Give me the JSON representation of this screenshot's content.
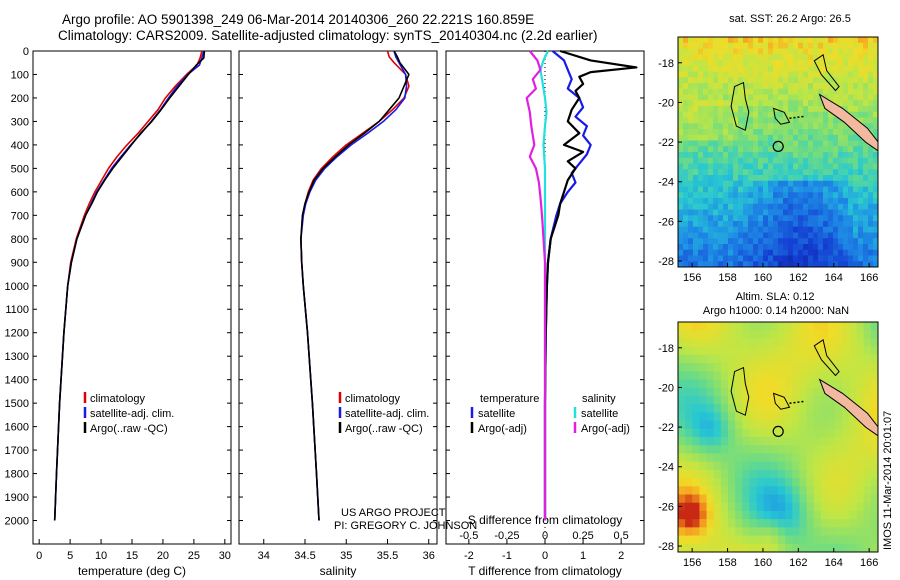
{
  "header": {
    "line1": "Argo profile: AO 5901398_249 06-Mar-2014 20140306_260 22.221S 160.859E",
    "line2": "Climatology: CARS2009. Satellite-adjusted climatology: synTS_20140304.nc (2.2d earlier)"
  },
  "colors": {
    "climatology": "#e00000",
    "satellite": "#1a1ae6",
    "argo": "#000000",
    "sal_satellite": "#20e0e0",
    "sal_argo": "#e020e0"
  },
  "stamp": "IMOS 11-Mar-2014 20:01:07",
  "credit": {
    "line1": "US ARGO PROJECT",
    "line2": "PI: GREGORY C. JOHNSON"
  },
  "chart_data": [
    {
      "type": "line",
      "panel": "temperature",
      "xlabel": "temperature (deg C)",
      "xlim": [
        -1,
        31
      ],
      "xticks": [
        "0",
        "5",
        "10",
        "15",
        "20",
        "25",
        "30"
      ],
      "ylim": [
        0,
        2100
      ],
      "yticks": [
        "0",
        "100",
        "200",
        "300",
        "400",
        "500",
        "600",
        "700",
        "800",
        "900",
        "1000",
        "1100",
        "1200",
        "1300",
        "1400",
        "1500",
        "1600",
        "1700",
        "1800",
        "1900",
        "2000"
      ],
      "legend": [
        "climatology",
        "satellite-adj. clim.",
        "Argo(..raw -QC)"
      ],
      "series": [
        {
          "name": "climatology",
          "depth": [
            0,
            30,
            60,
            100,
            150,
            200,
            250,
            300,
            350,
            400,
            450,
            500,
            550,
            600,
            650,
            700,
            800,
            900,
            1000,
            1200,
            1500,
            1800,
            2000
          ],
          "values": [
            26.3,
            26.0,
            25.5,
            23.8,
            22.0,
            20.4,
            19.2,
            17.6,
            16.0,
            14.2,
            12.6,
            11.2,
            10.1,
            9.0,
            8.1,
            7.3,
            6.0,
            5.1,
            4.6,
            4.0,
            3.3,
            2.8,
            2.5
          ]
        },
        {
          "name": "satellite-adj. clim.",
          "depth": [
            0,
            30,
            60,
            100,
            150,
            200,
            250,
            300,
            350,
            400,
            450,
            500,
            550,
            600,
            650,
            700,
            800,
            900,
            1000,
            1200,
            1500,
            1800,
            2000
          ],
          "values": [
            26.6,
            26.3,
            25.9,
            24.0,
            22.3,
            20.9,
            19.6,
            18.1,
            16.5,
            14.8,
            13.2,
            11.7,
            10.5,
            9.3,
            8.4,
            7.5,
            6.1,
            5.2,
            4.6,
            4.0,
            3.3,
            2.8,
            2.5
          ]
        },
        {
          "name": "Argo(..raw -QC)",
          "depth": [
            0,
            30,
            60,
            100,
            150,
            200,
            250,
            300,
            350,
            400,
            450,
            500,
            550,
            600,
            650,
            700,
            800,
            900,
            1000,
            1200,
            1500,
            1800,
            2000
          ],
          "values": [
            26.7,
            26.6,
            25.4,
            24.1,
            22.6,
            21.1,
            19.7,
            18.2,
            16.4,
            14.9,
            13.4,
            11.9,
            10.6,
            9.4,
            8.5,
            7.5,
            6.1,
            5.2,
            4.6,
            4.0,
            3.3,
            2.8,
            2.5
          ]
        }
      ]
    },
    {
      "type": "line",
      "panel": "salinity",
      "xlabel": "salinity",
      "xlim": [
        33.7,
        36.1
      ],
      "xticks": [
        "34",
        "34.5",
        "35",
        "35.5",
        "36"
      ],
      "ylim": [
        0,
        2100
      ],
      "legend": [
        "climatology",
        "satellite-adj. clim.",
        "Argo(..raw -QC)"
      ],
      "series": [
        {
          "name": "climatology",
          "depth": [
            0,
            25,
            50,
            100,
            150,
            200,
            250,
            300,
            350,
            400,
            450,
            500,
            550,
            600,
            650,
            700,
            800,
            900,
            1000,
            1200,
            1500,
            1800,
            2000
          ],
          "values": [
            35.5,
            35.52,
            35.58,
            35.72,
            35.76,
            35.7,
            35.56,
            35.4,
            35.2,
            35.0,
            34.84,
            34.7,
            34.6,
            34.54,
            34.5,
            34.47,
            34.45,
            34.46,
            34.48,
            34.53,
            34.59,
            34.64,
            34.67
          ]
        },
        {
          "name": "satellite-adj. clim.",
          "depth": [
            0,
            25,
            50,
            100,
            150,
            200,
            250,
            300,
            350,
            400,
            450,
            500,
            550,
            600,
            650,
            700,
            800,
            900,
            1000,
            1200,
            1500,
            1800,
            2000
          ],
          "values": [
            35.58,
            35.6,
            35.64,
            35.72,
            35.73,
            35.71,
            35.6,
            35.45,
            35.26,
            35.06,
            34.89,
            34.74,
            34.63,
            34.56,
            34.51,
            34.48,
            34.45,
            34.46,
            34.48,
            34.53,
            34.59,
            34.64,
            34.67
          ]
        },
        {
          "name": "Argo(..raw -QC)",
          "depth": [
            0,
            25,
            50,
            100,
            150,
            200,
            250,
            300,
            350,
            400,
            450,
            500,
            550,
            600,
            650,
            700,
            800,
            900,
            1000,
            1200,
            1500,
            1800,
            2000
          ],
          "values": [
            35.58,
            35.62,
            35.65,
            35.76,
            35.7,
            35.64,
            35.52,
            35.4,
            35.22,
            35.03,
            34.87,
            34.72,
            34.61,
            34.55,
            34.5,
            34.47,
            34.45,
            34.46,
            34.48,
            34.53,
            34.59,
            34.64,
            34.67
          ]
        }
      ]
    },
    {
      "type": "line",
      "panel": "difference",
      "xlabel_top": "S difference from climatology",
      "xlabel": "T difference from climatology",
      "xlim": [
        -2.6,
        2.6
      ],
      "xticks": [
        "-2",
        "-1",
        "0",
        "1",
        "2"
      ],
      "xticks_top": [
        "-0.5",
        "-0.25",
        "0",
        "0.25",
        "0.5"
      ],
      "ylim": [
        0,
        2100
      ],
      "legend_temperature": {
        "title": "temperature",
        "items": [
          "satellite",
          "Argo(-adj)"
        ]
      },
      "legend_salinity": {
        "title": "salinity",
        "items": [
          "satellite",
          "Argo(-adj)"
        ]
      },
      "series": [
        {
          "name": "temperature satellite",
          "depth": [
            0,
            40,
            80,
            120,
            160,
            200,
            240,
            280,
            320,
            360,
            400,
            440,
            480,
            520,
            560,
            600,
            650,
            700,
            800,
            900,
            1000,
            1200,
            1500,
            2000
          ],
          "values": [
            0.2,
            0.5,
            0.6,
            0.7,
            0.6,
            0.9,
            1.0,
            0.8,
            1.1,
            1.0,
            1.2,
            1.1,
            0.9,
            0.7,
            0.8,
            0.6,
            0.4,
            0.3,
            0.15,
            0.08,
            0.05,
            0.02,
            0.0,
            0.0
          ]
        },
        {
          "name": "temperature Argo(-adj)",
          "depth": [
            0,
            40,
            70,
            90,
            110,
            140,
            170,
            200,
            250,
            300,
            350,
            400,
            430,
            470,
            500,
            550,
            600,
            650,
            700,
            800,
            900,
            1000,
            1200,
            1500,
            2000
          ],
          "values": [
            0.4,
            1.2,
            2.4,
            1.2,
            0.9,
            1.0,
            0.8,
            0.9,
            0.7,
            0.6,
            0.9,
            0.5,
            1.0,
            0.6,
            0.8,
            0.6,
            0.5,
            0.4,
            0.35,
            0.15,
            0.08,
            0.05,
            0.02,
            0.0,
            0.0
          ]
        },
        {
          "name": "salinity satellite",
          "depth": [
            0,
            40,
            80,
            120,
            160,
            200,
            260,
            320,
            400,
            500,
            600,
            700,
            800,
            900,
            1000,
            1200,
            1500,
            2000
          ],
          "values": [
            0.02,
            -0.01,
            -0.03,
            -0.02,
            -0.01,
            0.0,
            0.01,
            0.0,
            -0.01,
            0.0,
            0.0,
            0.0,
            0.0,
            0.0,
            0.0,
            0.0,
            0.0,
            0.0
          ]
        },
        {
          "name": "salinity Argo(-adj)",
          "depth": [
            0,
            40,
            80,
            120,
            160,
            200,
            260,
            320,
            400,
            450,
            500,
            560,
            620,
            700,
            800,
            900,
            1000,
            1200,
            1500,
            2000
          ],
          "values": [
            -0.1,
            -0.05,
            -0.03,
            -0.08,
            -0.06,
            -0.12,
            -0.1,
            -0.09,
            -0.07,
            -0.1,
            -0.06,
            -0.04,
            -0.03,
            -0.02,
            -0.01,
            0.0,
            0.0,
            0.0,
            0.0,
            0.0
          ]
        }
      ]
    },
    {
      "type": "heatmap",
      "panel": "sst-map",
      "title": "sat. SST: 26.2 Argo: 26.5",
      "xticks": [
        "156",
        "158",
        "160",
        "162",
        "164",
        "166"
      ],
      "yticks": [
        "-18",
        "-20",
        "-22",
        "-24",
        "-26",
        "-28"
      ],
      "xlim": [
        155.2,
        166.5
      ],
      "ylim": [
        -28.3,
        -16.7
      ]
    },
    {
      "type": "heatmap",
      "panel": "sla-map",
      "title_line1": "Altim. SLA: 0.12",
      "title_line2": "Argo h1000: 0.14 h2000: NaN",
      "xticks": [
        "156",
        "158",
        "160",
        "162",
        "164",
        "166"
      ],
      "yticks": [
        "-18",
        "-20",
        "-22",
        "-24",
        "-26",
        "-28"
      ],
      "xlim": [
        155.2,
        166.5
      ],
      "ylim": [
        -28.3,
        -16.7
      ]
    }
  ]
}
